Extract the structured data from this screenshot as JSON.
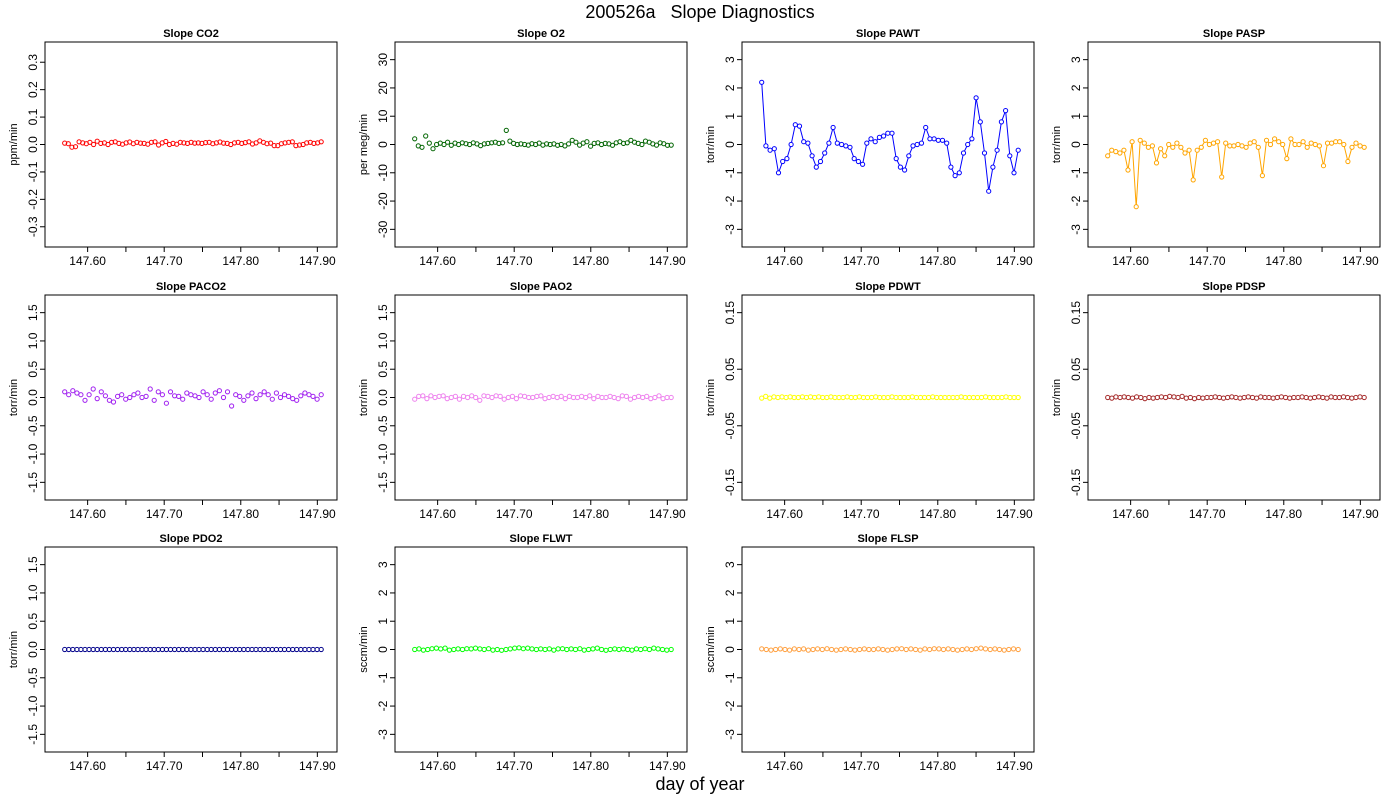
{
  "figure": {
    "title": "200526a   Slope Diagnostics",
    "xlabel": "day of year"
  },
  "chart_data": [
    {
      "type": "scatter",
      "title": "Slope CO2",
      "ylabel": "ppm/min",
      "color": "#ff0000",
      "xlim": [
        147.56,
        147.91
      ],
      "ylim": [
        -0.33,
        0.33
      ],
      "xticks": [
        "147.60",
        "147.70",
        "147.80",
        "147.90"
      ],
      "yticks": [
        "-0.3",
        "-0.2",
        "-0.1",
        "0.0",
        "0.1",
        "0.2",
        "0.3"
      ],
      "y": [
        0.005,
        0.003,
        -0.01,
        -0.008,
        0.01,
        0.006,
        0.003,
        0.008,
        0.0,
        0.012,
        0.004,
        0.006,
        0.0,
        0.008,
        0.01,
        0.004,
        0.001,
        0.006,
        0.009,
        0.003,
        0.008,
        0.005,
        0.004,
        0.001,
        0.008,
        0.01,
        -0.002,
        0.006,
        0.011,
        0.0,
        0.004,
        0.001,
        0.008,
        0.006,
        0.004,
        0.008,
        0.005,
        0.006,
        0.004,
        0.007,
        0.008,
        0.003,
        0.006,
        0.009,
        0.005,
        0.004,
        0.0,
        0.006,
        0.008,
        0.004,
        0.007,
        0.01,
        0.002,
        0.006,
        0.013,
        0.008,
        0.003,
        0.005,
        -0.004,
        -0.004,
        0.003,
        0.006,
        0.008,
        0.01,
        -0.004,
        -0.002,
        0.0,
        0.006,
        0.008,
        0.004,
        0.006,
        0.01
      ]
    },
    {
      "type": "scatter",
      "title": "Slope O2",
      "ylabel": "per meg/min",
      "color": "#006400",
      "xlim": [
        147.56,
        147.91
      ],
      "ylim": [
        -32,
        32
      ],
      "xticks": [
        "147.60",
        "147.70",
        "147.80",
        "147.90"
      ],
      "yticks": [
        "-30",
        "-20",
        "-10",
        "0",
        "10",
        "20",
        "30"
      ],
      "y": [
        2.0,
        -0.5,
        -1.0,
        3.0,
        0.5,
        -1.5,
        0.0,
        0.5,
        0.0,
        0.8,
        -0.3,
        0.5,
        0.0,
        0.6,
        0.3,
        0.0,
        0.6,
        0.2,
        -0.4,
        0.2,
        0.4,
        0.6,
        0.8,
        0.4,
        0.6,
        5.0,
        1.2,
        0.4,
        0.0,
        0.2,
        0.0,
        -0.2,
        0.3,
        0.0,
        0.5,
        -0.2,
        0.2,
        0.0,
        0.2,
        -0.3,
        0.0,
        -0.5,
        0.2,
        1.5,
        0.8,
        -0.2,
        0.5,
        1.0,
        -0.6,
        0.4,
        0.6,
        0.0,
        0.4,
        0.2,
        -0.3,
        0.6,
        1.0,
        0.4,
        0.6,
        1.5,
        0.8,
        0.4,
        0.0,
        1.2,
        0.8,
        0.2,
        -0.2,
        0.6,
        0.3,
        -0.3,
        -0.2
      ]
    },
    {
      "type": "line",
      "title": "Slope PAWT",
      "ylabel": "torr/min",
      "color": "#0000ff",
      "xlim": [
        147.56,
        147.91
      ],
      "ylim": [
        -3.2,
        3.2
      ],
      "xticks": [
        "147.60",
        "147.70",
        "147.80",
        "147.90"
      ],
      "yticks": [
        "-3",
        "-2",
        "-1",
        "0",
        "1",
        "2",
        "3"
      ],
      "y": [
        2.2,
        -0.05,
        -0.2,
        -0.15,
        -1.0,
        -0.6,
        -0.5,
        0.0,
        0.7,
        0.65,
        0.1,
        0.05,
        -0.4,
        -0.8,
        -0.6,
        -0.3,
        0.05,
        0.6,
        0.05,
        0.0,
        -0.05,
        -0.1,
        -0.5,
        -0.6,
        -0.7,
        0.05,
        0.2,
        0.1,
        0.25,
        0.3,
        0.4,
        0.4,
        -0.5,
        -0.8,
        -0.9,
        -0.4,
        -0.05,
        0.0,
        0.05,
        0.6,
        0.2,
        0.2,
        0.15,
        0.15,
        0.05,
        -0.8,
        -1.1,
        -1.0,
        -0.3,
        0.0,
        0.2,
        1.65,
        0.8,
        -0.3,
        -1.65,
        -0.8,
        -0.2,
        0.8,
        1.2,
        -0.4,
        -1.0,
        -0.2
      ]
    },
    {
      "type": "line",
      "title": "Slope PASP",
      "ylabel": "torr/min",
      "color": "#ffa500",
      "xlim": [
        147.56,
        147.91
      ],
      "ylim": [
        -3.2,
        3.2
      ],
      "xticks": [
        "147.60",
        "147.70",
        "147.80",
        "147.90"
      ],
      "yticks": [
        "-3",
        "-2",
        "-1",
        "0",
        "1",
        "2",
        "3"
      ],
      "y": [
        -0.4,
        -0.2,
        -0.25,
        -0.3,
        -0.2,
        -0.9,
        0.1,
        -2.2,
        0.15,
        0.05,
        -0.1,
        -0.05,
        -0.65,
        -0.15,
        -0.4,
        0.0,
        -0.1,
        0.05,
        -0.1,
        -0.3,
        -0.2,
        -1.25,
        -0.2,
        -0.1,
        0.15,
        0.0,
        0.05,
        0.1,
        -1.15,
        0.05,
        -0.05,
        -0.05,
        0.0,
        -0.05,
        -0.1,
        0.05,
        0.1,
        -0.1,
        -1.1,
        0.15,
        0.0,
        0.2,
        0.1,
        0.0,
        -0.5,
        0.2,
        0.0,
        0.0,
        0.1,
        -0.1,
        0.05,
        0.0,
        -0.05,
        -0.75,
        0.05,
        0.05,
        0.1,
        0.1,
        0.0,
        -0.6,
        -0.1,
        0.05,
        -0.05,
        -0.1
      ]
    },
    {
      "type": "scatter",
      "title": "Slope PACO2",
      "ylabel": "torr/min",
      "color": "#a020f0",
      "xlim": [
        147.56,
        147.91
      ],
      "ylim": [
        -1.6,
        1.6
      ],
      "xticks": [
        "147.60",
        "147.70",
        "147.80",
        "147.90"
      ],
      "yticks": [
        "-1.5",
        "-1.0",
        "-0.5",
        "0.0",
        "0.5",
        "1.0",
        "1.5"
      ],
      "y": [
        0.1,
        0.05,
        0.12,
        0.08,
        0.05,
        -0.05,
        0.05,
        0.15,
        -0.02,
        0.1,
        0.03,
        -0.05,
        -0.08,
        0.02,
        0.05,
        -0.03,
        0.0,
        0.05,
        0.08,
        0.0,
        0.02,
        0.15,
        -0.05,
        0.1,
        0.05,
        -0.1,
        0.1,
        0.03,
        0.02,
        -0.03,
        0.08,
        0.05,
        0.03,
        0.0,
        0.1,
        0.05,
        -0.03,
        0.08,
        0.12,
        0.0,
        0.1,
        -0.15,
        0.05,
        0.02,
        -0.05,
        0.03,
        0.08,
        -0.02,
        0.05,
        0.1,
        0.05,
        -0.03,
        0.08,
        0.0,
        0.05,
        0.02,
        -0.02,
        -0.05,
        0.03,
        0.08,
        0.05,
        0.02,
        -0.03,
        0.05
      ]
    },
    {
      "type": "scatter",
      "title": "Slope PAO2",
      "ylabel": "torr/min",
      "color": "#ee82ee",
      "xlim": [
        147.56,
        147.91
      ],
      "ylim": [
        -1.6,
        1.6
      ],
      "xticks": [
        "147.60",
        "147.70",
        "147.80",
        "147.90"
      ],
      "yticks": [
        "-1.5",
        "-1.0",
        "-0.5",
        "0.0",
        "0.5",
        "1.0",
        "1.5"
      ],
      "y": [
        -0.03,
        0.02,
        0.03,
        -0.02,
        0.03,
        0.0,
        0.02,
        0.03,
        -0.02,
        0.0,
        0.02,
        -0.03,
        0.02,
        0.0,
        0.03,
        0.0,
        -0.05,
        0.03,
        0.02,
        0.0,
        0.03,
        0.02,
        -0.03,
        0.0,
        0.02,
        -0.02,
        0.03,
        0.02,
        0.0,
        0.0,
        0.02,
        0.03,
        -0.02,
        0.0,
        0.02,
        0.0,
        0.02,
        -0.02,
        0.02,
        0.0,
        0.0,
        0.02,
        0.0,
        0.03,
        -0.02,
        0.02,
        0.0,
        0.0,
        0.02,
        0.0,
        -0.02,
        0.03,
        0.02,
        -0.03,
        0.0,
        0.02,
        0.0,
        0.02,
        -0.02,
        0.0,
        0.03,
        -0.02,
        0.0,
        0.0
      ]
    },
    {
      "type": "scatter",
      "title": "Slope PDWT",
      "ylabel": "torr/min",
      "color": "#ffff00",
      "xlim": [
        147.56,
        147.91
      ],
      "ylim": [
        -0.16,
        0.16
      ],
      "xticks": [
        "147.60",
        "147.70",
        "147.80",
        "147.90"
      ],
      "yticks": [
        "-0.15",
        "-0.05",
        "0.05",
        "0.15"
      ],
      "y": [
        -0.001,
        0.002,
        -0.001,
        0.001,
        0.0,
        0.001,
        0.0,
        0.001,
        0.0,
        0.0,
        0.001,
        0.0,
        0.001,
        0.0,
        0.001,
        0.0,
        0.0,
        0.001,
        0.0,
        0.0,
        0.0,
        0.001,
        0.0,
        0.0,
        0.001,
        0.0,
        0.0,
        0.0,
        0.001,
        0.0,
        0.0,
        0.0,
        0.001,
        0.0,
        0.0,
        0.0,
        0.0,
        0.001,
        0.0,
        0.0,
        0.0,
        0.0,
        0.001,
        0.0,
        0.0,
        0.0,
        0.0,
        0.0,
        0.0,
        0.001,
        0.0,
        0.0,
        0.0,
        0.0,
        0.0,
        0.001,
        0.0,
        0.0,
        0.0,
        0.0,
        0.001,
        0.0,
        0.0,
        0.0
      ]
    },
    {
      "type": "scatter",
      "title": "Slope PDSP",
      "ylabel": "torr/min",
      "color": "#a52a2a",
      "xlim": [
        147.56,
        147.91
      ],
      "ylim": [
        -0.16,
        0.16
      ],
      "xticks": [
        "147.60",
        "147.70",
        "147.80",
        "147.90"
      ],
      "yticks": [
        "-0.15",
        "-0.05",
        "0.05",
        "0.15"
      ],
      "y": [
        0.0,
        -0.001,
        0.001,
        0.0,
        0.001,
        0.0,
        -0.001,
        0.001,
        0.0,
        -0.002,
        0.0,
        -0.001,
        0.0,
        0.001,
        0.0,
        0.002,
        0.001,
        0.0,
        0.002,
        -0.001,
        0.0,
        -0.002,
        0.0,
        -0.001,
        0.0,
        0.0,
        0.001,
        0.0,
        -0.001,
        0.0,
        0.001,
        0.0,
        -0.001,
        0.0,
        0.001,
        0.0,
        -0.001,
        0.001,
        0.0,
        0.0,
        -0.001,
        0.0,
        0.001,
        0.0,
        -0.001,
        0.0,
        0.0,
        0.001,
        0.0,
        -0.001,
        0.0,
        0.001,
        0.0,
        -0.001,
        0.001,
        0.0,
        0.0,
        0.001,
        0.0,
        -0.001,
        0.0,
        0.001,
        0.0
      ]
    },
    {
      "type": "scatter",
      "title": "Slope PDO2",
      "ylabel": "torr/min",
      "color": "#00008b",
      "xlim": [
        147.56,
        147.91
      ],
      "ylim": [
        -1.6,
        1.6
      ],
      "xticks": [
        "147.60",
        "147.70",
        "147.80",
        "147.90"
      ],
      "yticks": [
        "-1.5",
        "-1.0",
        "-0.5",
        "0.0",
        "0.5",
        "1.0",
        "1.5"
      ],
      "y": [
        0.0,
        0.0,
        0.0,
        0.0,
        0.0,
        0.0,
        0.0,
        0.0,
        0.0,
        0.0,
        0.0,
        0.0,
        0.0,
        0.0,
        0.0,
        0.0,
        0.0,
        0.0,
        0.0,
        0.0,
        0.0,
        0.0,
        0.0,
        0.0,
        0.0,
        0.0,
        0.0,
        0.0,
        0.0,
        0.0,
        0.0,
        0.0,
        0.0,
        0.0,
        0.0,
        0.0,
        0.0,
        0.0,
        0.0,
        0.0,
        0.0,
        0.0,
        0.0,
        0.0,
        0.0,
        0.0,
        0.0,
        0.0,
        0.0,
        0.0,
        0.0,
        0.0,
        0.0,
        0.0,
        0.0,
        0.0,
        0.0,
        0.0,
        0.0,
        0.0,
        0.0,
        0.0,
        0.0,
        0.0
      ]
    },
    {
      "type": "scatter",
      "title": "Slope FLWT",
      "ylabel": "sccm/min",
      "color": "#00ff00",
      "xlim": [
        147.56,
        147.91
      ],
      "ylim": [
        -3.2,
        3.2
      ],
      "xticks": [
        "147.60",
        "147.70",
        "147.80",
        "147.90"
      ],
      "yticks": [
        "-3",
        "-2",
        "-1",
        "0",
        "1",
        "2",
        "3"
      ],
      "y": [
        0.0,
        0.02,
        -0.02,
        0.0,
        0.03,
        0.05,
        0.02,
        0.05,
        -0.02,
        0.0,
        0.02,
        0.0,
        0.03,
        0.02,
        0.05,
        0.02,
        0.0,
        0.03,
        -0.02,
        0.0,
        -0.03,
        0.0,
        0.02,
        0.05,
        0.06,
        0.03,
        0.05,
        0.02,
        0.0,
        0.02,
        0.0,
        0.02,
        -0.02,
        0.02,
        0.03,
        0.0,
        0.02,
        0.0,
        0.03,
        -0.02,
        0.0,
        0.02,
        0.05,
        0.0,
        -0.03,
        0.0,
        0.02,
        0.0,
        0.02,
        0.0,
        -0.02,
        0.02,
        0.0,
        0.03,
        0.0,
        0.05,
        0.02,
        0.0,
        -0.02,
        0.0
      ]
    },
    {
      "type": "scatter",
      "title": "Slope FLSP",
      "ylabel": "sccm/min",
      "color": "#ffa040",
      "xlim": [
        147.56,
        147.91
      ],
      "ylim": [
        -3.2,
        3.2
      ],
      "xticks": [
        "147.60",
        "147.70",
        "147.80",
        "147.90"
      ],
      "yticks": [
        "-3",
        "-2",
        "-1",
        "0",
        "1",
        "2",
        "3"
      ],
      "y": [
        0.02,
        0.0,
        -0.02,
        0.0,
        0.02,
        0.0,
        -0.02,
        0.02,
        0.0,
        0.02,
        -0.02,
        0.0,
        0.02,
        0.0,
        0.03,
        0.0,
        -0.02,
        0.0,
        0.02,
        0.0,
        -0.02,
        0.0,
        0.02,
        0.0,
        0.0,
        0.02,
        0.0,
        -0.02,
        0.0,
        0.02,
        0.03,
        0.0,
        0.02,
        0.0,
        -0.02,
        0.02,
        0.0,
        0.03,
        0.02,
        0.0,
        0.02,
        0.0,
        -0.02,
        0.0,
        0.02,
        0.0,
        0.03,
        0.05,
        0.02,
        0.0,
        0.02,
        0.0,
        -0.02,
        0.0,
        0.02,
        0.0
      ]
    }
  ]
}
